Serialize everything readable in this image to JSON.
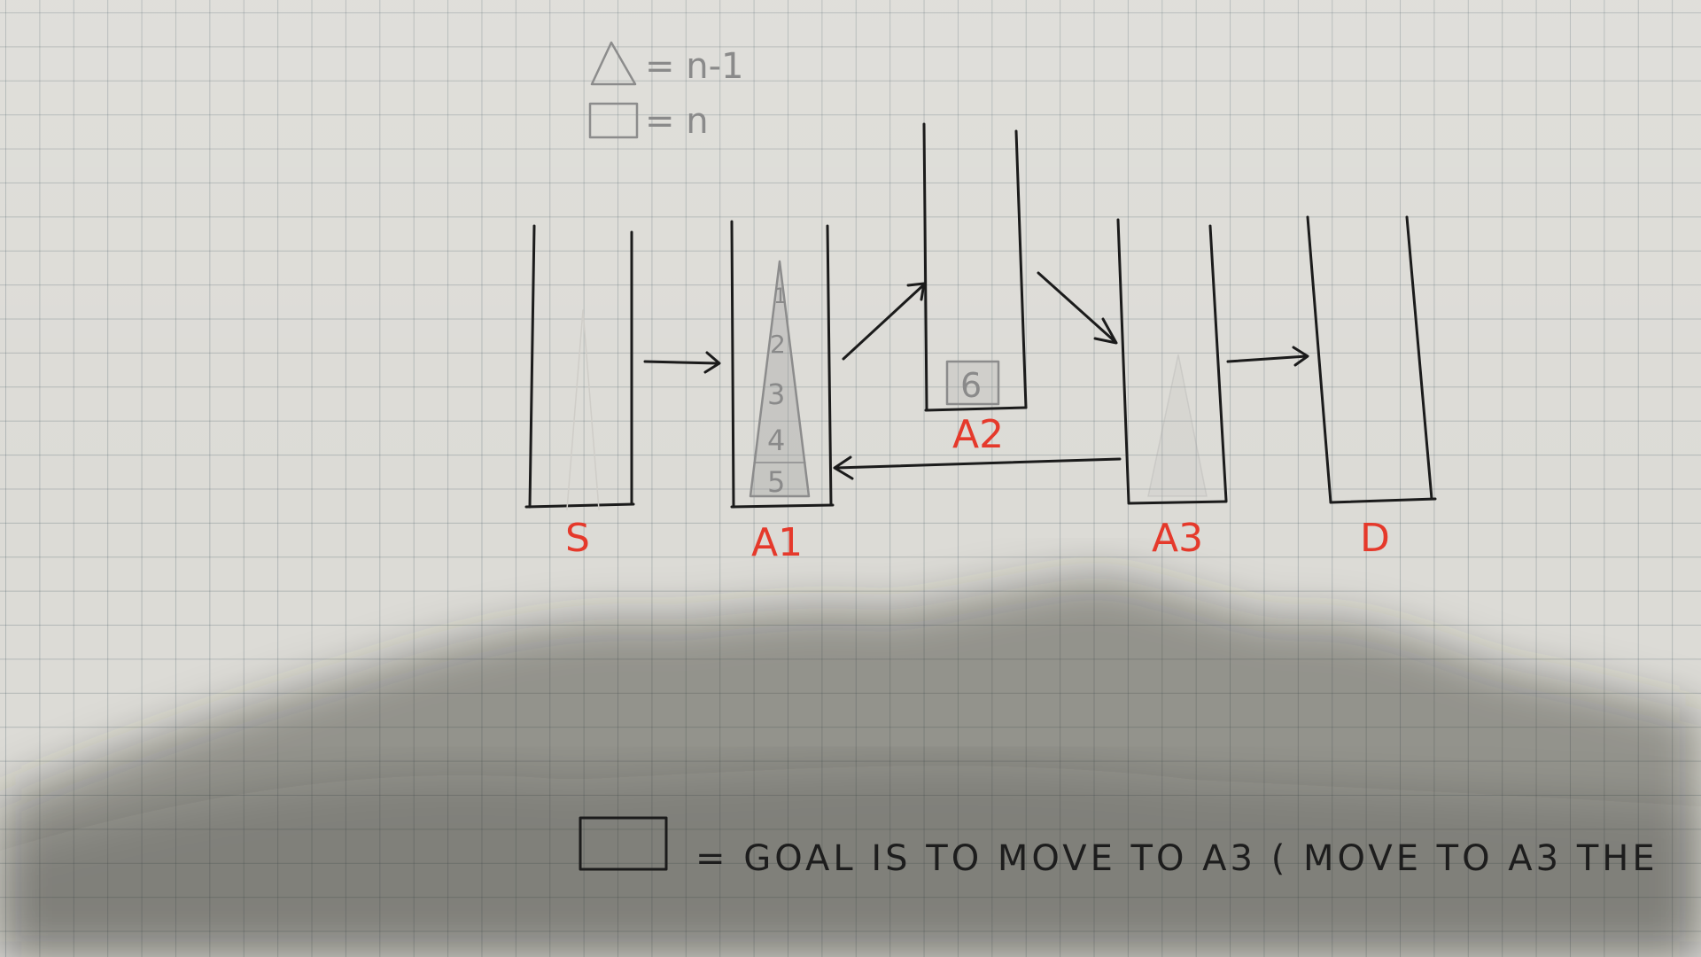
{
  "legend": {
    "triangle_symbol": "△",
    "triangle_text": "= n-1",
    "square_symbol": "□",
    "square_text": "= n"
  },
  "pegs": [
    {
      "id": "source",
      "label": "S"
    },
    {
      "id": "aux1",
      "label": "A1"
    },
    {
      "id": "aux2",
      "label": "A2"
    },
    {
      "id": "aux3",
      "label": "A3"
    },
    {
      "id": "destination",
      "label": "D"
    }
  ],
  "stack_numbers": [
    "1",
    "2",
    "3",
    "4",
    "5"
  ],
  "disk_label": "6",
  "goal_text": "= GOAL IS TO MOVE TO A3 ( MOVE TO A3 THE",
  "colors": {
    "ink": "#1b1b1b",
    "label_red": "#e5392b",
    "pencil": "#8c8c8c",
    "paper": "#dcdbd6"
  }
}
